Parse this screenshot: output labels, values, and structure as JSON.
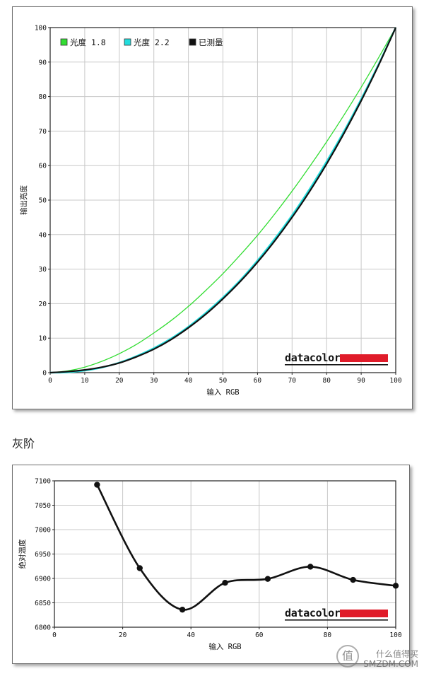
{
  "section_title": "灰阶",
  "watermark": {
    "text": "什么值得买",
    "sub": "SMZDM.COM",
    "icon": "值"
  },
  "chart_data": [
    {
      "type": "line",
      "xlabel": "输入 RGB",
      "ylabel": "输出亮度",
      "xlim": [
        0,
        100
      ],
      "ylim": [
        0,
        100
      ],
      "xticks": [
        0,
        10,
        20,
        30,
        40,
        50,
        60,
        70,
        80,
        90,
        100
      ],
      "yticks": [
        0,
        10,
        20,
        30,
        40,
        50,
        60,
        70,
        80,
        90,
        100
      ],
      "grid": true,
      "legend_position": "top-left",
      "series": [
        {
          "name": "光度 1.8",
          "color": "#33dd33",
          "gamma": 1.8,
          "x": [
            0,
            5,
            10,
            15,
            20,
            25,
            30,
            35,
            40,
            45,
            50,
            55,
            60,
            65,
            70,
            75,
            80,
            85,
            90,
            95,
            100
          ],
          "values": [
            0,
            0.5,
            1.6,
            3.3,
            5.5,
            8.2,
            11.5,
            15.1,
            19.2,
            23.8,
            28.7,
            34.1,
            39.8,
            46.0,
            52.6,
            59.6,
            66.9,
            74.6,
            82.7,
            91.2,
            100
          ]
        },
        {
          "name": "光度 2.2",
          "color": "#22dddd",
          "gamma": 2.2,
          "x": [
            0,
            5,
            10,
            15,
            20,
            25,
            30,
            35,
            40,
            45,
            50,
            55,
            60,
            65,
            70,
            75,
            80,
            85,
            90,
            95,
            100
          ],
          "values": [
            0,
            0.1,
            0.6,
            1.5,
            2.9,
            4.8,
            7.1,
            9.9,
            13.3,
            17.3,
            21.8,
            26.8,
            32.5,
            38.8,
            45.6,
            53.1,
            61.2,
            69.9,
            79.3,
            89.3,
            100
          ]
        },
        {
          "name": "已测量",
          "color": "#111111",
          "x": [
            0,
            5,
            10,
            15,
            20,
            25,
            30,
            35,
            40,
            45,
            50,
            55,
            60,
            65,
            70,
            75,
            80,
            85,
            90,
            95,
            100
          ],
          "values": [
            0,
            0.3,
            0.8,
            1.6,
            2.8,
            4.6,
            6.8,
            9.6,
            13.0,
            16.9,
            21.4,
            26.4,
            32.0,
            38.2,
            45.0,
            52.4,
            60.5,
            69.3,
            78.8,
            89.0,
            100
          ]
        }
      ],
      "logo": {
        "text": "datacolor",
        "bar_color": "#e01c2a"
      }
    },
    {
      "type": "line",
      "xlabel": "输入 RGB",
      "ylabel": "绝对温度",
      "xlim": [
        0,
        100
      ],
      "ylim": [
        6800,
        7100
      ],
      "xticks": [
        0,
        20,
        40,
        60,
        80,
        100
      ],
      "yticks": [
        6800,
        6850,
        6900,
        6950,
        7000,
        7050,
        7100
      ],
      "grid": true,
      "series": [
        {
          "color": "#111111",
          "x": [
            12.5,
            25,
            37.5,
            50,
            62.5,
            75,
            87.5,
            100
          ],
          "values": [
            7092,
            6921,
            6836,
            6891,
            6899,
            6924,
            6897,
            6885
          ]
        }
      ],
      "logo": {
        "text": "datacolor",
        "bar_color": "#e01c2a"
      }
    }
  ]
}
